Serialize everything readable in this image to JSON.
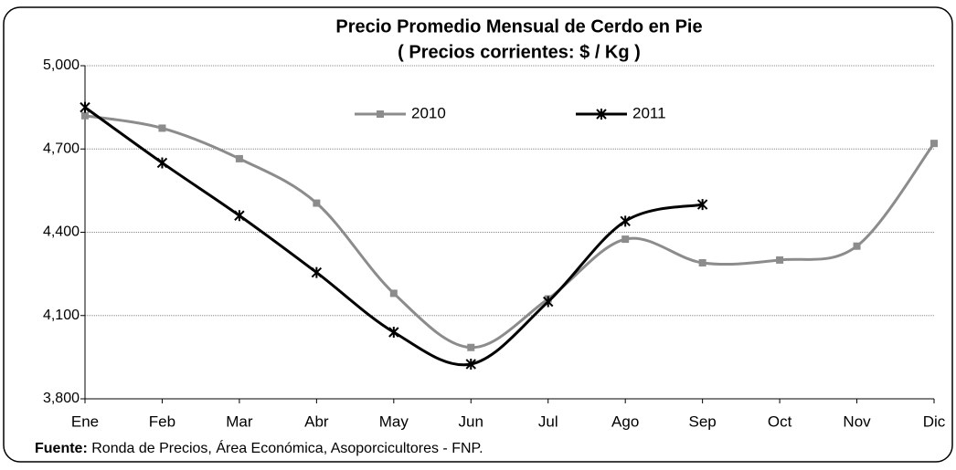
{
  "chart_data": {
    "type": "line",
    "title": "Precio Promedio Mensual de Cerdo en Pie",
    "subtitle": "( Precios corrientes: $ / Kg )",
    "source_label": "Fuente:",
    "source": "Ronda de Precios, Área Económica, Asoporcicultores - FNP.",
    "categories": [
      "Ene",
      "Feb",
      "Mar",
      "Abr",
      "May",
      "Jun",
      "Jul",
      "Ago",
      "Sep",
      "Oct",
      "Nov",
      "Dic"
    ],
    "series": [
      {
        "name": "2010",
        "color": "#8c8c8c",
        "marker": "square",
        "values": [
          4820,
          4775,
          4665,
          4505,
          4180,
          3985,
          4160,
          4375,
          4290,
          4300,
          4350,
          4720
        ]
      },
      {
        "name": "2011",
        "color": "#000000",
        "marker": "asterisk",
        "values": [
          4850,
          4650,
          4460,
          4255,
          4040,
          3925,
          4150,
          4440,
          4500,
          null,
          null,
          null
        ]
      }
    ],
    "ylim": [
      3800,
      5000
    ],
    "yticks": [
      {
        "value": 3800,
        "label": "3,800"
      },
      {
        "value": 4100,
        "label": "4,100"
      },
      {
        "value": 4400,
        "label": "4,400"
      },
      {
        "value": 4700,
        "label": "4,700"
      },
      {
        "value": 5000,
        "label": "5,000"
      }
    ],
    "grid": true,
    "legend": "top-center"
  }
}
